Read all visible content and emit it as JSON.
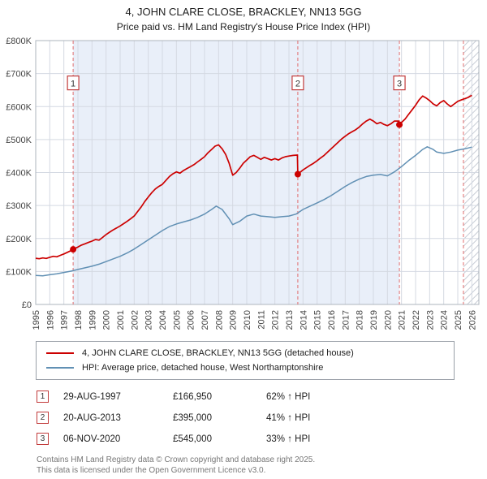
{
  "title": "4, JOHN CLARE CLOSE, BRACKLEY, NN13 5GG",
  "subtitle": "Price paid vs. HM Land Registry's House Price Index (HPI)",
  "chart_data": {
    "type": "line",
    "title": "4, JOHN CLARE CLOSE, BRACKLEY, NN13 5GG",
    "subtitle": "Price paid vs. HM Land Registry's House Price Index (HPI)",
    "xlabel": "",
    "ylabel": "",
    "xlim": [
      1995,
      2026.5
    ],
    "ylim": [
      0,
      800000
    ],
    "grid": true,
    "legend_position": "bottom",
    "xticks": [
      1995,
      1996,
      1997,
      1998,
      1999,
      2000,
      2001,
      2002,
      2003,
      2004,
      2005,
      2006,
      2007,
      2008,
      2009,
      2010,
      2011,
      2012,
      2013,
      2014,
      2015,
      2016,
      2017,
      2018,
      2019,
      2020,
      2021,
      2022,
      2023,
      2024,
      2025,
      2026
    ],
    "yticks": [
      0,
      100000,
      200000,
      300000,
      400000,
      500000,
      600000,
      700000,
      800000
    ],
    "ytick_labels": [
      "£0",
      "£100K",
      "£200K",
      "£300K",
      "£400K",
      "£500K",
      "£600K",
      "£700K",
      "£800K"
    ],
    "shaded_region": [
      1997.66,
      2020.85
    ],
    "hatched_region": [
      2025.4,
      2026.5
    ],
    "now_line": 2025.4,
    "colors": {
      "property": "#cc0000",
      "hpi": "#6190b4",
      "shade": "#e9eff9",
      "grid": "#d4d9e2",
      "dashed": "#e06c6c",
      "border": "#aeb4bd",
      "hatch": "#c8cdd6",
      "marker_box_border": "#c23b3b"
    },
    "series": [
      {
        "name": "4, JOHN CLARE CLOSE, BRACKLEY, NN13 5GG (detached house)",
        "color": "#cc0000",
        "width": 1.7,
        "points": [
          [
            1995,
            140000
          ],
          [
            1995.25,
            138500
          ],
          [
            1995.5,
            141000
          ],
          [
            1995.75,
            139500
          ],
          [
            1996,
            143000
          ],
          [
            1996.25,
            146000
          ],
          [
            1996.5,
            144500
          ],
          [
            1996.75,
            149000
          ],
          [
            1997,
            153000
          ],
          [
            1997.25,
            158000
          ],
          [
            1997.5,
            163000
          ],
          [
            1997.66,
            166950
          ],
          [
            1998,
            174000
          ],
          [
            1998.25,
            180000
          ],
          [
            1998.5,
            184000
          ],
          [
            1998.75,
            188000
          ],
          [
            1999,
            192000
          ],
          [
            1999.25,
            197000
          ],
          [
            1999.5,
            195000
          ],
          [
            1999.75,
            203000
          ],
          [
            2000,
            212000
          ],
          [
            2000.25,
            219000
          ],
          [
            2000.5,
            226000
          ],
          [
            2000.75,
            232000
          ],
          [
            2001,
            238000
          ],
          [
            2001.25,
            245000
          ],
          [
            2001.5,
            252000
          ],
          [
            2001.75,
            260000
          ],
          [
            2002,
            268000
          ],
          [
            2002.25,
            282000
          ],
          [
            2002.5,
            296000
          ],
          [
            2002.75,
            312000
          ],
          [
            2003,
            326000
          ],
          [
            2003.25,
            339000
          ],
          [
            2003.5,
            350000
          ],
          [
            2003.75,
            358000
          ],
          [
            2004,
            364000
          ],
          [
            2004.25,
            376000
          ],
          [
            2004.5,
            388000
          ],
          [
            2004.75,
            396000
          ],
          [
            2005,
            402000
          ],
          [
            2005.25,
            398000
          ],
          [
            2005.5,
            406000
          ],
          [
            2005.75,
            412000
          ],
          [
            2006,
            418000
          ],
          [
            2006.25,
            424000
          ],
          [
            2006.5,
            432000
          ],
          [
            2006.75,
            440000
          ],
          [
            2007,
            448000
          ],
          [
            2007.25,
            460000
          ],
          [
            2007.5,
            470000
          ],
          [
            2007.75,
            480000
          ],
          [
            2008,
            484000
          ],
          [
            2008.25,
            472000
          ],
          [
            2008.5,
            455000
          ],
          [
            2008.75,
            428000
          ],
          [
            2009,
            392000
          ],
          [
            2009.25,
            400000
          ],
          [
            2009.5,
            413000
          ],
          [
            2009.75,
            428000
          ],
          [
            2010,
            438000
          ],
          [
            2010.25,
            448000
          ],
          [
            2010.5,
            452000
          ],
          [
            2010.75,
            446000
          ],
          [
            2011,
            440000
          ],
          [
            2011.25,
            446000
          ],
          [
            2011.5,
            442000
          ],
          [
            2011.75,
            438000
          ],
          [
            2012,
            442000
          ],
          [
            2012.25,
            438000
          ],
          [
            2012.5,
            444000
          ],
          [
            2012.75,
            448000
          ],
          [
            2013,
            450000
          ],
          [
            2013.3,
            452000
          ],
          [
            2013.6,
            453000
          ],
          [
            2013.63,
            395000
          ],
          [
            2014,
            408000
          ],
          [
            2014.25,
            415000
          ],
          [
            2014.5,
            422000
          ],
          [
            2014.75,
            428000
          ],
          [
            2015,
            436000
          ],
          [
            2015.25,
            444000
          ],
          [
            2015.5,
            452000
          ],
          [
            2015.75,
            462000
          ],
          [
            2016,
            472000
          ],
          [
            2016.25,
            482000
          ],
          [
            2016.5,
            492000
          ],
          [
            2016.75,
            502000
          ],
          [
            2017,
            510000
          ],
          [
            2017.25,
            518000
          ],
          [
            2017.5,
            524000
          ],
          [
            2017.75,
            530000
          ],
          [
            2018,
            538000
          ],
          [
            2018.25,
            548000
          ],
          [
            2018.5,
            556000
          ],
          [
            2018.75,
            562000
          ],
          [
            2019,
            556000
          ],
          [
            2019.25,
            548000
          ],
          [
            2019.5,
            552000
          ],
          [
            2019.75,
            546000
          ],
          [
            2020,
            542000
          ],
          [
            2020.25,
            548000
          ],
          [
            2020.5,
            556000
          ],
          [
            2020.8,
            556000
          ],
          [
            2020.85,
            545000
          ],
          [
            2021,
            552000
          ],
          [
            2021.25,
            562000
          ],
          [
            2021.5,
            576000
          ],
          [
            2021.75,
            590000
          ],
          [
            2022,
            604000
          ],
          [
            2022.25,
            620000
          ],
          [
            2022.5,
            632000
          ],
          [
            2022.75,
            626000
          ],
          [
            2023,
            618000
          ],
          [
            2023.25,
            608000
          ],
          [
            2023.5,
            602000
          ],
          [
            2023.75,
            612000
          ],
          [
            2024,
            618000
          ],
          [
            2024.25,
            608000
          ],
          [
            2024.5,
            600000
          ],
          [
            2024.75,
            608000
          ],
          [
            2025,
            616000
          ],
          [
            2025.25,
            620000
          ],
          [
            2025.5,
            624000
          ],
          [
            2025.75,
            628000
          ],
          [
            2026,
            634000
          ]
        ]
      },
      {
        "name": "HPI: Average price, detached house, West Northamptonshire",
        "color": "#6190b4",
        "width": 1.5,
        "points": [
          [
            1995,
            88000
          ],
          [
            1995.5,
            87000
          ],
          [
            1996,
            90000
          ],
          [
            1996.5,
            93000
          ],
          [
            1997,
            97000
          ],
          [
            1997.5,
            101000
          ],
          [
            1998,
            106000
          ],
          [
            1998.5,
            111000
          ],
          [
            1999,
            116000
          ],
          [
            1999.5,
            122000
          ],
          [
            2000,
            130000
          ],
          [
            2000.5,
            138000
          ],
          [
            2001,
            146000
          ],
          [
            2001.5,
            156000
          ],
          [
            2002,
            168000
          ],
          [
            2002.5,
            182000
          ],
          [
            2003,
            196000
          ],
          [
            2003.5,
            210000
          ],
          [
            2004,
            224000
          ],
          [
            2004.5,
            236000
          ],
          [
            2005,
            244000
          ],
          [
            2005.5,
            250000
          ],
          [
            2006,
            256000
          ],
          [
            2006.5,
            264000
          ],
          [
            2007,
            274000
          ],
          [
            2007.5,
            288000
          ],
          [
            2007.83,
            298000
          ],
          [
            2008.25,
            288000
          ],
          [
            2008.75,
            260000
          ],
          [
            2009,
            242000
          ],
          [
            2009.5,
            252000
          ],
          [
            2010,
            268000
          ],
          [
            2010.5,
            274000
          ],
          [
            2011,
            268000
          ],
          [
            2011.5,
            266000
          ],
          [
            2012,
            264000
          ],
          [
            2012.5,
            266000
          ],
          [
            2013,
            268000
          ],
          [
            2013.5,
            274000
          ],
          [
            2014,
            288000
          ],
          [
            2014.5,
            298000
          ],
          [
            2015,
            308000
          ],
          [
            2015.5,
            318000
          ],
          [
            2016,
            330000
          ],
          [
            2016.5,
            344000
          ],
          [
            2017,
            358000
          ],
          [
            2017.5,
            370000
          ],
          [
            2018,
            380000
          ],
          [
            2018.5,
            388000
          ],
          [
            2019,
            392000
          ],
          [
            2019.5,
            394000
          ],
          [
            2020,
            390000
          ],
          [
            2020.5,
            402000
          ],
          [
            2021,
            418000
          ],
          [
            2021.5,
            436000
          ],
          [
            2022,
            452000
          ],
          [
            2022.5,
            470000
          ],
          [
            2022.83,
            478000
          ],
          [
            2023.25,
            470000
          ],
          [
            2023.5,
            462000
          ],
          [
            2024,
            458000
          ],
          [
            2024.5,
            462000
          ],
          [
            2025,
            468000
          ],
          [
            2025.5,
            472000
          ],
          [
            2026,
            477000
          ]
        ]
      }
    ],
    "sales": [
      {
        "n": "1",
        "x": 1997.66,
        "y": 166950
      },
      {
        "n": "2",
        "x": 2013.63,
        "y": 395000
      },
      {
        "n": "3",
        "x": 2020.85,
        "y": 545000
      }
    ]
  },
  "legend": [
    {
      "label": "4, JOHN CLARE CLOSE, BRACKLEY, NN13 5GG (detached house)"
    },
    {
      "label": "HPI: Average price, detached house, West Northamptonshire"
    }
  ],
  "transactions": [
    {
      "n": "1",
      "date": "29-AUG-1997",
      "price": "£166,950",
      "hpi": "62% ↑ HPI"
    },
    {
      "n": "2",
      "date": "20-AUG-2013",
      "price": "£395,000",
      "hpi": "41% ↑ HPI"
    },
    {
      "n": "3",
      "date": "06-NOV-2020",
      "price": "£545,000",
      "hpi": "33% ↑ HPI"
    }
  ],
  "footer": {
    "line1": "Contains HM Land Registry data © Crown copyright and database right 2025.",
    "line2": "This data is licensed under the Open Government Licence v3.0."
  }
}
